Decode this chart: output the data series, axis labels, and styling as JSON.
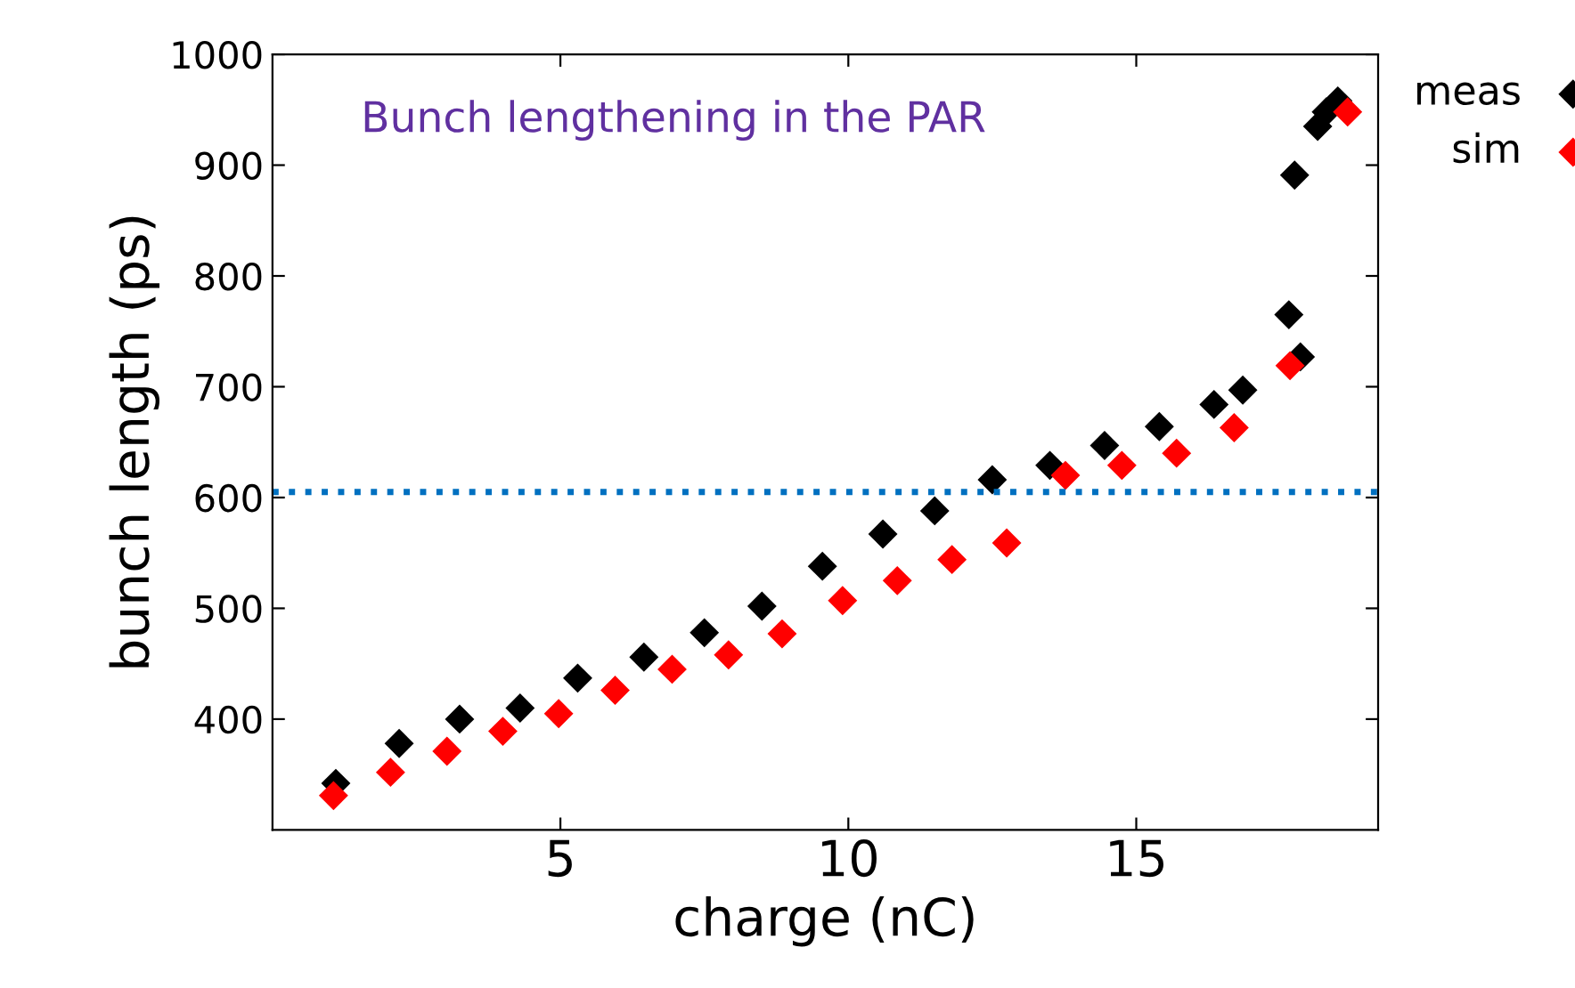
{
  "chart_data": {
    "type": "scatter",
    "xlabel": "charge (nC)",
    "ylabel": "bunch length (ps)",
    "annotations": [
      "Bunch lengthening in the PAR"
    ],
    "xlim": [
      0,
      19.2
    ],
    "ylim": [
      300,
      1000
    ],
    "xticks": [
      5,
      10,
      15
    ],
    "yticks": [
      400,
      500,
      600,
      700,
      800,
      900,
      1000
    ],
    "marker": "diamond",
    "legend": "top right",
    "grid": false,
    "ref_lines": [
      {
        "axis": "y",
        "value": 605,
        "color": "#0070c0",
        "line_style": "dotted"
      }
    ],
    "series": [
      {
        "name": "meas",
        "color": "#000000",
        "x": [
          1.1,
          2.2,
          3.25,
          4.3,
          5.3,
          6.45,
          7.5,
          8.5,
          9.55,
          10.6,
          11.5,
          12.5,
          13.5,
          14.45,
          15.4,
          16.35,
          16.85,
          17.65,
          17.85,
          17.75,
          18.15,
          18.3,
          18.5
        ],
        "values": [
          342,
          378,
          400,
          410,
          437,
          456,
          478,
          502,
          538,
          567,
          588,
          616,
          629,
          647,
          664,
          684,
          697,
          765,
          727,
          891,
          935,
          948,
          958
        ]
      },
      {
        "name": "sim",
        "color": "#ff0000",
        "x": [
          1.06,
          2.05,
          3.03,
          4.0,
          4.97,
          5.95,
          6.94,
          7.92,
          8.85,
          9.9,
          10.85,
          11.8,
          12.75,
          13.77,
          14.75,
          15.7,
          16.7,
          17.67,
          18.67
        ],
        "values": [
          331,
          352,
          371,
          389,
          405,
          426,
          445,
          458,
          477,
          507,
          525,
          544,
          559,
          620,
          629,
          640,
          663,
          719,
          948
        ]
      }
    ]
  }
}
